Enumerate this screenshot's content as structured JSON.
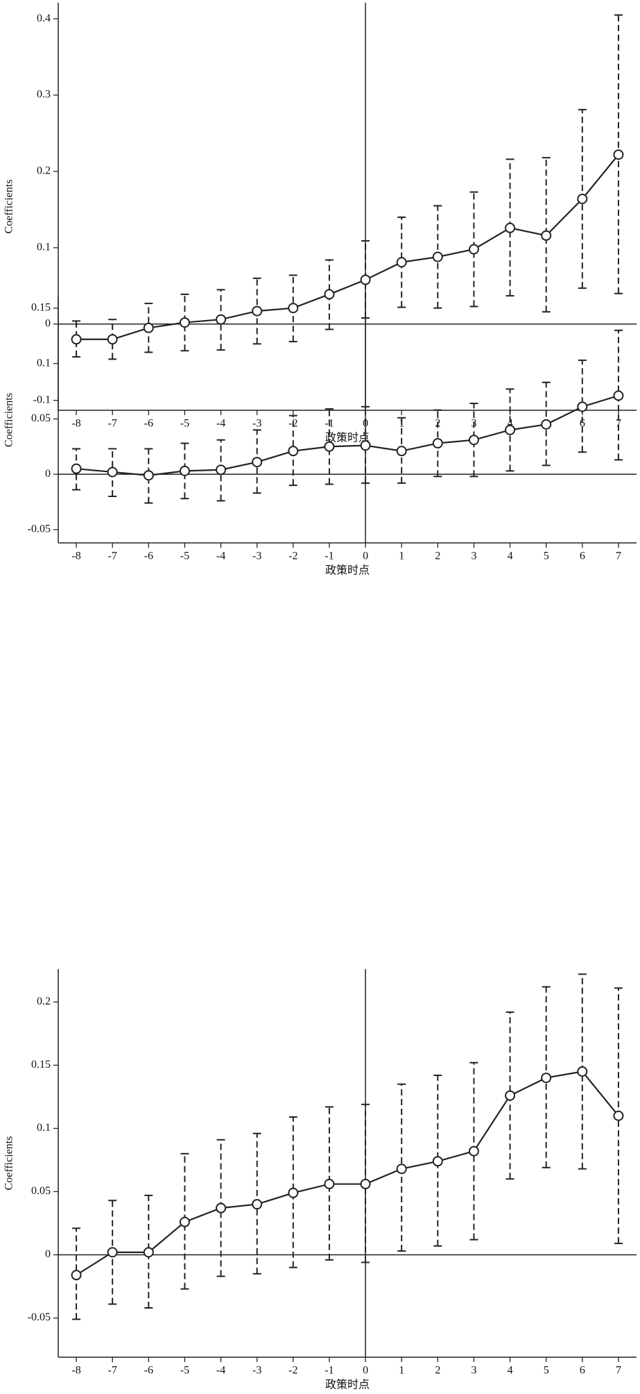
{
  "chart_data": [
    {
      "type": "line",
      "y_label": "Coefficients",
      "x_label": "政策时点",
      "x": [
        -8,
        -7,
        -6,
        -5,
        -4,
        -3,
        -2,
        -1,
        0,
        1,
        2,
        3,
        4,
        5,
        6,
        7
      ],
      "xlim": [
        -8.5,
        7.5
      ],
      "xticks": [
        -8,
        -7,
        -6,
        -5,
        -4,
        -3,
        -2,
        -1,
        0,
        1,
        2,
        3,
        4,
        5,
        6,
        7
      ],
      "ylim": [
        -0.113,
        0.421
      ],
      "yticks": [
        -0.1,
        0,
        0.1,
        0.2,
        0.3,
        0.4
      ],
      "vline": 0,
      "hline": 0,
      "color": "#222",
      "series": [
        {
          "values": [
            -0.02,
            -0.02,
            -0.005,
            0.002,
            0.006,
            0.017,
            0.021,
            0.039,
            0.058,
            0.081,
            0.088,
            0.098,
            0.126,
            0.116,
            0.164,
            0.222
          ],
          "ci_lower": [
            -0.043,
            -0.046,
            -0.037,
            -0.035,
            -0.034,
            -0.026,
            -0.023,
            -0.007,
            0.008,
            0.022,
            0.021,
            0.023,
            0.037,
            0.016,
            0.047,
            0.04
          ],
          "ci_upper": [
            0.004,
            0.006,
            0.027,
            0.039,
            0.045,
            0.06,
            0.064,
            0.084,
            0.109,
            0.14,
            0.155,
            0.173,
            0.216,
            0.218,
            0.281,
            0.405
          ]
        }
      ]
    },
    {
      "type": "line",
      "y_label": "Coefficients",
      "x_label": "政策时点",
      "x": [
        -8,
        -7,
        -6,
        -5,
        -4,
        -3,
        -2,
        -1,
        0,
        1,
        2,
        3,
        4,
        5,
        6,
        7
      ],
      "xlim": [
        -8.5,
        7.5
      ],
      "xticks": [
        -8,
        -7,
        -6,
        -5,
        -4,
        -3,
        -2,
        -1,
        0,
        1,
        2,
        3,
        4,
        5,
        6,
        7
      ],
      "ylim": [
        -0.062,
        0.16
      ],
      "yticks": [
        -0.05,
        0,
        0.05,
        0.1,
        0.15
      ],
      "vline": 0,
      "hline": 0,
      "color": "#222",
      "series": [
        {
          "values": [
            0.005,
            0.002,
            -0.001,
            0.003,
            0.004,
            0.011,
            0.021,
            0.025,
            0.026,
            0.021,
            0.028,
            0.031,
            0.04,
            0.045,
            0.061,
            0.071
          ],
          "ci_lower": [
            -0.014,
            -0.02,
            -0.026,
            -0.022,
            -0.024,
            -0.017,
            -0.01,
            -0.009,
            -0.008,
            -0.008,
            -0.002,
            -0.002,
            0.003,
            0.008,
            0.02,
            0.013
          ],
          "ci_upper": [
            0.023,
            0.023,
            0.023,
            0.028,
            0.031,
            0.04,
            0.053,
            0.059,
            0.061,
            0.051,
            0.058,
            0.064,
            0.077,
            0.083,
            0.103,
            0.13
          ]
        }
      ]
    },
    {
      "type": "line",
      "y_label": "Coefficients",
      "x_label": "政策时点",
      "x": [
        -8,
        -7,
        -6,
        -5,
        -4,
        -3,
        -2,
        -1,
        0,
        1,
        2,
        3,
        4,
        5,
        6,
        7
      ],
      "xlim": [
        -8.5,
        7.5
      ],
      "xticks": [
        -8,
        -7,
        -6,
        -5,
        -4,
        -3,
        -2,
        -1,
        0,
        1,
        2,
        3,
        4,
        5,
        6,
        7
      ],
      "ylim": [
        -0.081,
        0.226
      ],
      "yticks": [
        -0.05,
        0,
        0.05,
        0.1,
        0.15,
        0.2
      ],
      "vline": 0,
      "hline": 0,
      "color": "#222",
      "series": [
        {
          "values": [
            -0.016,
            0.002,
            0.002,
            0.026,
            0.037,
            0.04,
            0.049,
            0.056,
            0.056,
            0.068,
            0.074,
            0.082,
            0.126,
            0.14,
            0.145,
            0.11
          ],
          "ci_lower": [
            -0.051,
            -0.039,
            -0.042,
            -0.027,
            -0.017,
            -0.015,
            -0.01,
            -0.004,
            -0.006,
            0.003,
            0.007,
            0.012,
            0.06,
            0.069,
            0.068,
            0.009
          ],
          "ci_upper": [
            0.021,
            0.043,
            0.047,
            0.08,
            0.091,
            0.096,
            0.109,
            0.117,
            0.119,
            0.135,
            0.142,
            0.152,
            0.192,
            0.212,
            0.222,
            0.211
          ]
        }
      ]
    }
  ]
}
